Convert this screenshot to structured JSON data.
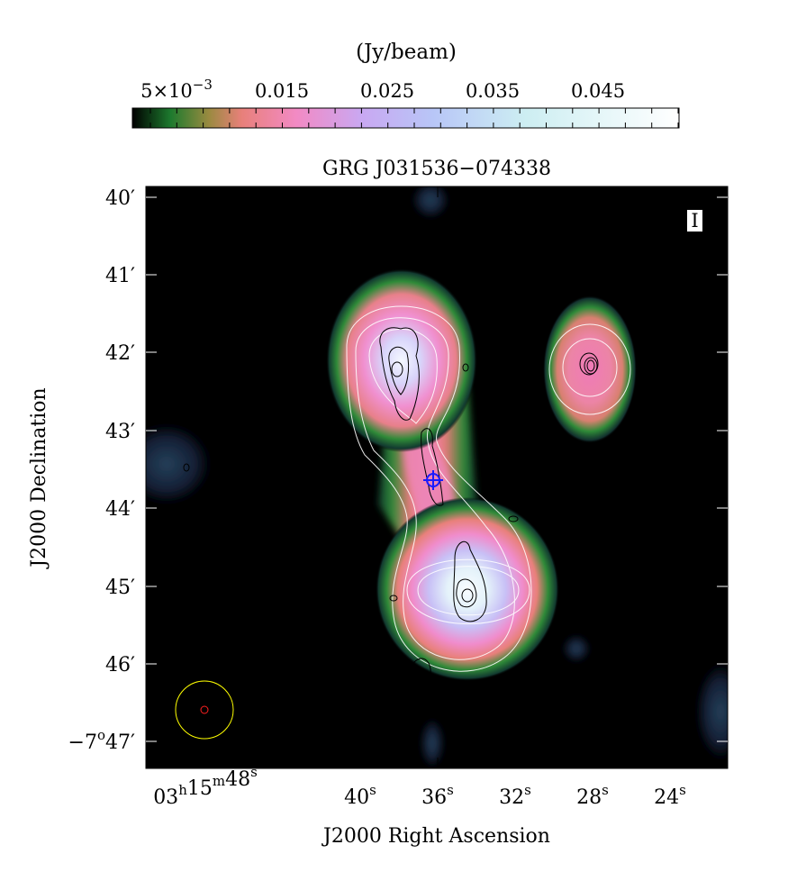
{
  "colorbar": {
    "unit_label": "(Jy/beam)",
    "tick_labels": [
      {
        "base": "5×10",
        "exp": "−3"
      },
      {
        "base": "0.015",
        "exp": ""
      },
      {
        "base": "0.025",
        "exp": ""
      },
      {
        "base": "0.035",
        "exp": ""
      },
      {
        "base": "0.045",
        "exp": ""
      }
    ],
    "colors": [
      "#000000",
      "#1d7a2e",
      "#e8807a",
      "#f28ac4",
      "#c9a8f2",
      "#b8c6f7",
      "#cdeef2",
      "#ffffff"
    ]
  },
  "plot": {
    "title": "GRG J031536−074338",
    "stokes_label": "I",
    "xlabel": "J2000 Right Ascension",
    "ylabel": "J2000 Declination",
    "ra_ticks": [
      {
        "parts": [
          [
            "03",
            "h"
          ],
          [
            "15",
            "m"
          ],
          [
            "48",
            "s"
          ]
        ]
      },
      {
        "parts": [
          [
            "40",
            "s"
          ]
        ]
      },
      {
        "parts": [
          [
            "36",
            "s"
          ]
        ]
      },
      {
        "parts": [
          [
            "32",
            "s"
          ]
        ]
      },
      {
        "parts": [
          [
            "28",
            "s"
          ]
        ]
      },
      {
        "parts": [
          [
            "24",
            "s"
          ]
        ]
      }
    ],
    "dec_ticks": [
      {
        "main": "40",
        "unit": "′"
      },
      {
        "main": "41",
        "unit": "′"
      },
      {
        "main": "42",
        "unit": "′"
      },
      {
        "main": "43",
        "unit": "′"
      },
      {
        "main": "44",
        "unit": "′"
      },
      {
        "main": "45",
        "unit": "′"
      },
      {
        "main": "46",
        "unit": "′"
      },
      {
        "main": "−7",
        "deg": "o",
        "unit": "47′"
      }
    ],
    "marker_color": "#1a1aff",
    "beam_outer_color": "#ffff00",
    "beam_inner_color": "#ff2020"
  }
}
